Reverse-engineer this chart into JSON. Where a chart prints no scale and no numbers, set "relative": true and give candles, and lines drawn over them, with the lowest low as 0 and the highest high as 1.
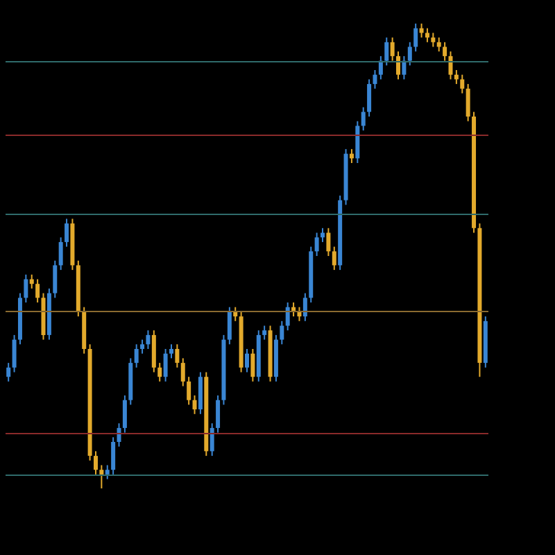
{
  "chart_data": {
    "type": "candlestick",
    "relative": true,
    "grid": false,
    "colors": [
      "#3a86d4",
      "#3a86d4",
      "#3a86d4",
      "#3a86d4",
      "#e3aa2c",
      "#e3aa2c",
      "#e3aa2c",
      "#3a86d4",
      "#3a86d4",
      "#3a86d4",
      "#3a86d4",
      "#e3aa2c",
      "#e3aa2c",
      "#e3aa2c",
      "#e3aa2c",
      "#e3aa2c",
      "#e3aa2c",
      "#3a86d4",
      "#3a86d4",
      "#3a86d4",
      "#3a86d4",
      "#3a86d4",
      "#3a86d4",
      "#3a86d4",
      "#3a86d4",
      "#e3aa2c",
      "#e3aa2c",
      "#3a86d4",
      "#3a86d4",
      "#e3aa2c",
      "#e3aa2c",
      "#e3aa2c",
      "#e3aa2c",
      "#3a86d4",
      "#e3aa2c",
      "#3a86d4",
      "#3a86d4",
      "#3a86d4",
      "#3a86d4",
      "#e3aa2c",
      "#e3aa2c",
      "#3a86d4",
      "#e3aa2c",
      "#3a86d4",
      "#3a86d4",
      "#e3aa2c",
      "#3a86d4",
      "#3a86d4",
      "#3a86d4",
      "#e3aa2c",
      "#e3aa2c",
      "#3a86d4",
      "#3a86d4",
      "#3a86d4",
      "#3a86d4",
      "#e3aa2c",
      "#e3aa2c",
      "#3a86d4",
      "#3a86d4",
      "#e3aa2c",
      "#3a86d4",
      "#3a86d4",
      "#3a86d4",
      "#3a86d4",
      "#3a86d4",
      "#3a86d4",
      "#e3aa2c",
      "#e3aa2c",
      "#3a86d4",
      "#3a86d4",
      "#3a86d4",
      "#e3aa2c",
      "#e3aa2c",
      "#e3aa2c",
      "#e3aa2c",
      "#e3aa2c",
      "#e3aa2c",
      "#e3aa2c",
      "#e3aa2c",
      "#e3aa2c",
      "#e3aa2c",
      "#e3aa2c",
      "#3a86d4"
    ],
    "categories": [
      null,
      null,
      null,
      null,
      null,
      null,
      null,
      null,
      null,
      null,
      null,
      null,
      null,
      null,
      null,
      null,
      null,
      null,
      null,
      null,
      null,
      null,
      null,
      null,
      null,
      null,
      null,
      null,
      null,
      null,
      null,
      null,
      null,
      null,
      null,
      null,
      null,
      null,
      null,
      null,
      null,
      null,
      null,
      null,
      null,
      null,
      null,
      null,
      null,
      null,
      null,
      null,
      null,
      null,
      null,
      null,
      null,
      null,
      null,
      null,
      null,
      null,
      null,
      null,
      null,
      null,
      null,
      null,
      null,
      null,
      null,
      null,
      null,
      null,
      null,
      null,
      null,
      null,
      null,
      null,
      null,
      null,
      null
    ],
    "ohlc": [
      [
        0.24,
        0.27,
        0.23,
        0.26
      ],
      [
        0.26,
        0.33,
        0.25,
        0.32
      ],
      [
        0.32,
        0.42,
        0.31,
        0.41
      ],
      [
        0.41,
        0.46,
        0.4,
        0.45
      ],
      [
        0.45,
        0.46,
        0.43,
        0.44
      ],
      [
        0.44,
        0.45,
        0.4,
        0.41
      ],
      [
        0.41,
        0.42,
        0.32,
        0.33
      ],
      [
        0.33,
        0.43,
        0.32,
        0.42
      ],
      [
        0.42,
        0.49,
        0.41,
        0.48
      ],
      [
        0.48,
        0.54,
        0.47,
        0.53
      ],
      [
        0.53,
        0.58,
        0.52,
        0.57
      ],
      [
        0.57,
        0.58,
        0.47,
        0.48
      ],
      [
        0.48,
        0.49,
        0.37,
        0.38
      ],
      [
        0.38,
        0.39,
        0.29,
        0.3
      ],
      [
        0.3,
        0.31,
        0.06,
        0.07
      ],
      [
        0.07,
        0.08,
        0.03,
        0.04
      ],
      [
        0.04,
        0.05,
        0.0,
        0.03
      ],
      [
        0.03,
        0.05,
        0.02,
        0.04
      ],
      [
        0.04,
        0.11,
        0.03,
        0.1
      ],
      [
        0.1,
        0.14,
        0.09,
        0.13
      ],
      [
        0.13,
        0.2,
        0.12,
        0.19
      ],
      [
        0.19,
        0.28,
        0.18,
        0.27
      ],
      [
        0.27,
        0.31,
        0.26,
        0.3
      ],
      [
        0.3,
        0.32,
        0.29,
        0.31
      ],
      [
        0.31,
        0.34,
        0.3,
        0.33
      ],
      [
        0.33,
        0.34,
        0.25,
        0.26
      ],
      [
        0.26,
        0.27,
        0.23,
        0.24
      ],
      [
        0.24,
        0.3,
        0.23,
        0.29
      ],
      [
        0.29,
        0.31,
        0.28,
        0.3
      ],
      [
        0.3,
        0.31,
        0.26,
        0.27
      ],
      [
        0.27,
        0.28,
        0.22,
        0.23
      ],
      [
        0.23,
        0.24,
        0.18,
        0.19
      ],
      [
        0.19,
        0.2,
        0.16,
        0.17
      ],
      [
        0.17,
        0.25,
        0.16,
        0.24
      ],
      [
        0.24,
        0.25,
        0.07,
        0.08
      ],
      [
        0.08,
        0.14,
        0.07,
        0.13
      ],
      [
        0.13,
        0.2,
        0.12,
        0.19
      ],
      [
        0.19,
        0.33,
        0.18,
        0.32
      ],
      [
        0.32,
        0.39,
        0.31,
        0.38
      ],
      [
        0.38,
        0.39,
        0.36,
        0.37
      ],
      [
        0.37,
        0.38,
        0.25,
        0.26
      ],
      [
        0.26,
        0.3,
        0.25,
        0.29
      ],
      [
        0.29,
        0.3,
        0.23,
        0.24
      ],
      [
        0.24,
        0.34,
        0.23,
        0.33
      ],
      [
        0.33,
        0.35,
        0.32,
        0.34
      ],
      [
        0.34,
        0.35,
        0.23,
        0.24
      ],
      [
        0.24,
        0.33,
        0.23,
        0.32
      ],
      [
        0.32,
        0.36,
        0.31,
        0.35
      ],
      [
        0.35,
        0.4,
        0.34,
        0.39
      ],
      [
        0.39,
        0.4,
        0.37,
        0.38
      ],
      [
        0.38,
        0.39,
        0.36,
        0.37
      ],
      [
        0.37,
        0.42,
        0.36,
        0.41
      ],
      [
        0.41,
        0.52,
        0.4,
        0.51
      ],
      [
        0.51,
        0.55,
        0.5,
        0.54
      ],
      [
        0.54,
        0.56,
        0.53,
        0.55
      ],
      [
        0.55,
        0.56,
        0.5,
        0.51
      ],
      [
        0.51,
        0.52,
        0.47,
        0.48
      ],
      [
        0.48,
        0.63,
        0.47,
        0.62
      ],
      [
        0.62,
        0.73,
        0.61,
        0.72
      ],
      [
        0.72,
        0.73,
        0.7,
        0.71
      ],
      [
        0.71,
        0.79,
        0.7,
        0.78
      ],
      [
        0.78,
        0.82,
        0.77,
        0.81
      ],
      [
        0.81,
        0.88,
        0.8,
        0.87
      ],
      [
        0.87,
        0.9,
        0.86,
        0.89
      ],
      [
        0.89,
        0.93,
        0.88,
        0.92
      ],
      [
        0.92,
        0.97,
        0.91,
        0.96
      ],
      [
        0.96,
        0.97,
        0.92,
        0.93
      ],
      [
        0.93,
        0.94,
        0.88,
        0.89
      ],
      [
        0.89,
        0.93,
        0.88,
        0.92
      ],
      [
        0.92,
        0.96,
        0.91,
        0.95
      ],
      [
        0.95,
        1.0,
        0.94,
        0.99
      ],
      [
        0.99,
        1.0,
        0.97,
        0.98
      ],
      [
        0.98,
        0.99,
        0.96,
        0.97
      ],
      [
        0.97,
        0.98,
        0.95,
        0.96
      ],
      [
        0.96,
        0.97,
        0.94,
        0.95
      ],
      [
        0.95,
        0.96,
        0.92,
        0.93
      ],
      [
        0.93,
        0.94,
        0.88,
        0.89
      ],
      [
        0.89,
        0.9,
        0.87,
        0.88
      ],
      [
        0.88,
        0.89,
        0.85,
        0.86
      ],
      [
        0.86,
        0.87,
        0.79,
        0.8
      ],
      [
        0.8,
        0.81,
        0.55,
        0.56
      ],
      [
        0.56,
        0.57,
        0.24,
        0.27
      ],
      [
        0.27,
        0.37,
        0.26,
        0.36
      ]
    ],
    "ref_lines": [
      {
        "axis": "y",
        "value": 0.92,
        "color": "#2f6b6b"
      },
      {
        "axis": "y",
        "value": 0.76,
        "color": "#8a2a2a"
      },
      {
        "axis": "y",
        "value": 0.59,
        "color": "#2f6b6b"
      },
      {
        "axis": "y",
        "value": 0.38,
        "color": "#8a6a30"
      },
      {
        "axis": "y",
        "value": 0.12,
        "color": "#8a2a2a"
      },
      {
        "axis": "y",
        "value": 0.03,
        "color": "#2f6b6b"
      }
    ]
  }
}
